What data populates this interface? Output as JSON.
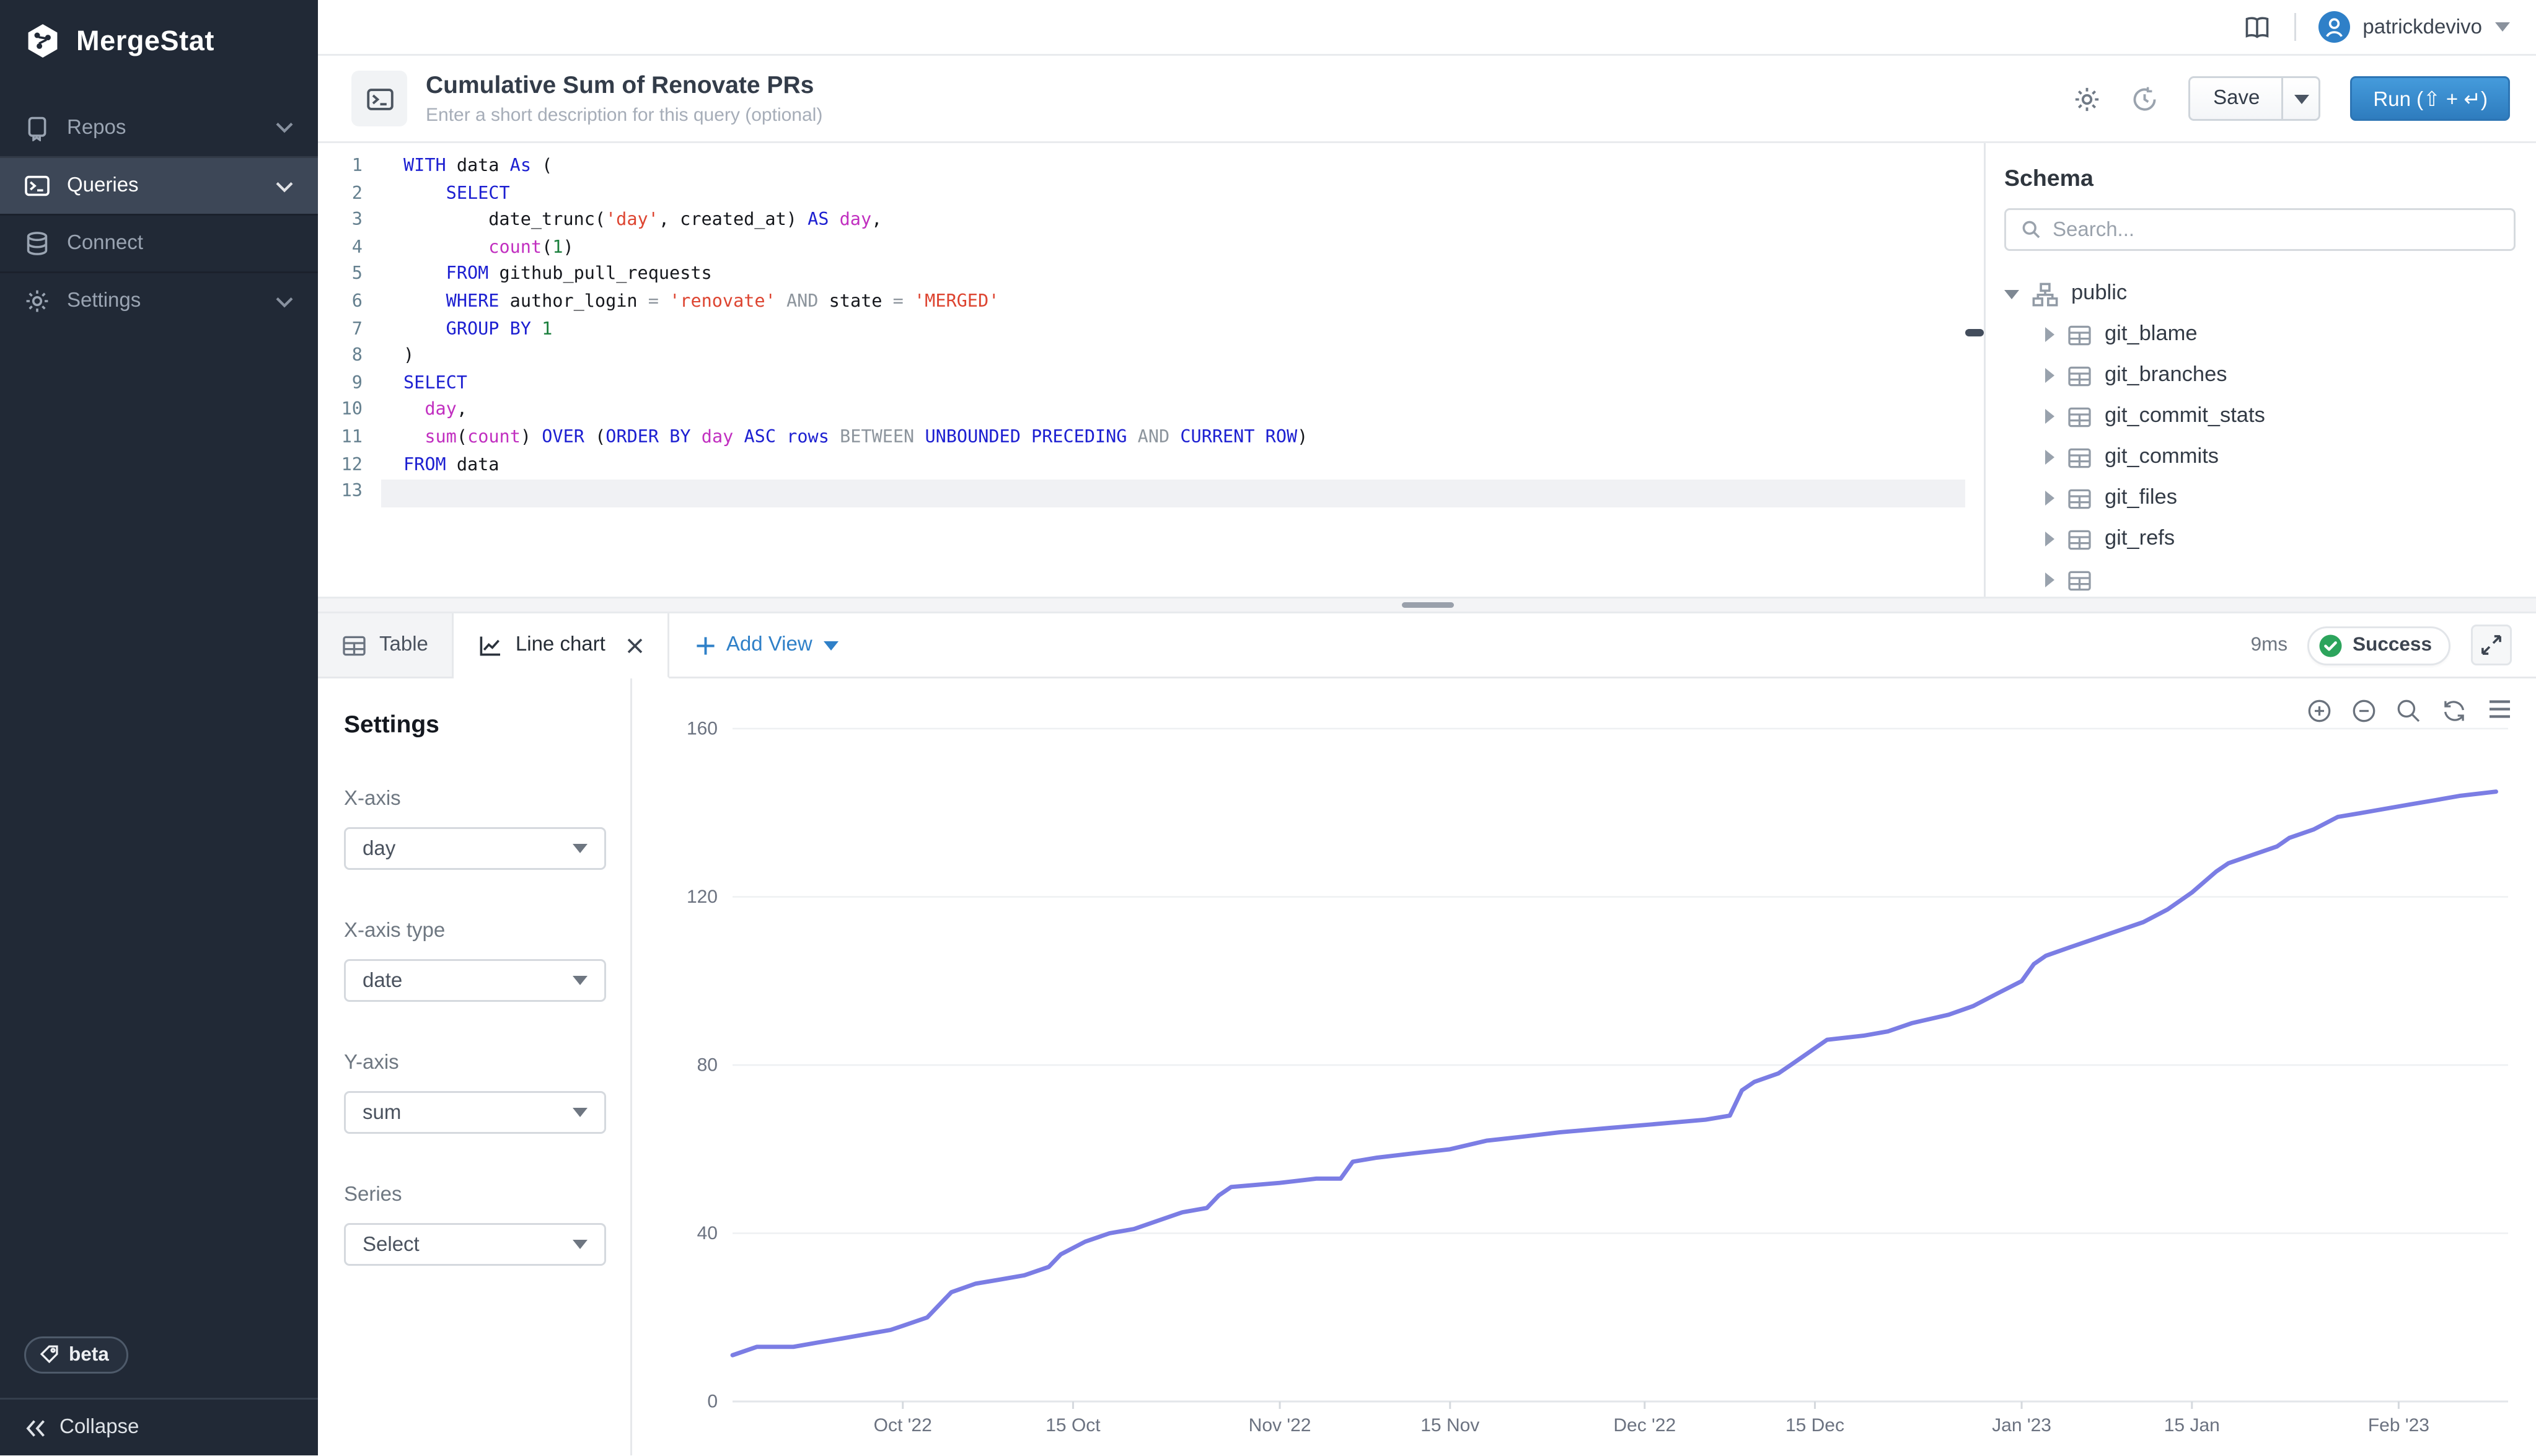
{
  "sidebar": {
    "logo_text": "MergeStat",
    "items": [
      {
        "label": "Repos",
        "selected": false,
        "has_chevron": true
      },
      {
        "label": "Queries",
        "selected": true,
        "has_chevron": true
      },
      {
        "label": "Connect",
        "selected": false,
        "has_chevron": false
      },
      {
        "label": "Settings",
        "selected": false,
        "has_chevron": true
      }
    ],
    "beta_label": "beta",
    "collapse_label": "Collapse"
  },
  "topbar": {
    "username": "patrickdevivo"
  },
  "query_header": {
    "title": "Cumulative Sum of Renovate PRs",
    "description_placeholder": "Enter a short description for this query (optional)",
    "save_label": "Save",
    "run_label": "Run (⇧ + ↵)"
  },
  "editor": {
    "lines": [
      {
        "num": "1",
        "tokens": [
          [
            "kw",
            "WITH"
          ],
          [
            "pl",
            " data "
          ],
          [
            "kw",
            "As"
          ],
          [
            "pl",
            " ("
          ]
        ]
      },
      {
        "num": "2",
        "tokens": [
          [
            "pl",
            "    "
          ],
          [
            "kw",
            "SELECT"
          ]
        ]
      },
      {
        "num": "3",
        "tokens": [
          [
            "pl",
            "        date_trunc("
          ],
          [
            "str",
            "'day'"
          ],
          [
            "pl",
            ", created_at) "
          ],
          [
            "kw",
            "AS"
          ],
          [
            "pl",
            " "
          ],
          [
            "fn",
            "day"
          ],
          [
            "pl",
            ","
          ]
        ]
      },
      {
        "num": "4",
        "tokens": [
          [
            "pl",
            "        "
          ],
          [
            "fn",
            "count"
          ],
          [
            "pl",
            "("
          ],
          [
            "num",
            "1"
          ],
          [
            "pl",
            ")"
          ]
        ]
      },
      {
        "num": "5",
        "tokens": [
          [
            "pl",
            "    "
          ],
          [
            "kw",
            "FROM"
          ],
          [
            "pl",
            " github_pull_requests"
          ]
        ]
      },
      {
        "num": "6",
        "tokens": [
          [
            "pl",
            "    "
          ],
          [
            "kw",
            "WHERE"
          ],
          [
            "pl",
            " author_login "
          ],
          [
            "op",
            "="
          ],
          [
            "pl",
            " "
          ],
          [
            "str",
            "'renovate'"
          ],
          [
            "pl",
            " "
          ],
          [
            "op",
            "AND"
          ],
          [
            "pl",
            " state "
          ],
          [
            "op",
            "="
          ],
          [
            "pl",
            " "
          ],
          [
            "str",
            "'MERGED'"
          ]
        ]
      },
      {
        "num": "7",
        "tokens": [
          [
            "pl",
            "    "
          ],
          [
            "kw",
            "GROUP BY"
          ],
          [
            "pl",
            " "
          ],
          [
            "num",
            "1"
          ]
        ]
      },
      {
        "num": "8",
        "tokens": [
          [
            "pl",
            ")"
          ]
        ]
      },
      {
        "num": "9",
        "tokens": [
          [
            "kw",
            "SELECT"
          ]
        ]
      },
      {
        "num": "10",
        "tokens": [
          [
            "pl",
            "  "
          ],
          [
            "fn",
            "day"
          ],
          [
            "pl",
            ","
          ]
        ]
      },
      {
        "num": "11",
        "tokens": [
          [
            "pl",
            "  "
          ],
          [
            "fn",
            "sum"
          ],
          [
            "pl",
            "("
          ],
          [
            "fn",
            "count"
          ],
          [
            "pl",
            ") "
          ],
          [
            "kw",
            "OVER"
          ],
          [
            "pl",
            " ("
          ],
          [
            "kw",
            "ORDER BY"
          ],
          [
            "pl",
            " "
          ],
          [
            "fn",
            "day"
          ],
          [
            "pl",
            " "
          ],
          [
            "kw",
            "ASC"
          ],
          [
            "pl",
            " "
          ],
          [
            "kw",
            "rows"
          ],
          [
            "pl",
            " "
          ],
          [
            "op",
            "BETWEEN"
          ],
          [
            "pl",
            " "
          ],
          [
            "kw",
            "UNBOUNDED PRECEDING"
          ],
          [
            "pl",
            " "
          ],
          [
            "op",
            "AND"
          ],
          [
            "pl",
            " "
          ],
          [
            "kw",
            "CURRENT ROW"
          ],
          [
            "pl",
            ")"
          ]
        ]
      },
      {
        "num": "12",
        "tokens": [
          [
            "kw",
            "FROM"
          ],
          [
            "pl",
            " data"
          ]
        ]
      },
      {
        "num": "13",
        "tokens": [],
        "active": true
      }
    ]
  },
  "schema": {
    "heading": "Schema",
    "search_placeholder": "Search...",
    "root_label": "public",
    "tables": [
      "git_blame",
      "git_branches",
      "git_commit_stats",
      "git_commits",
      "git_files",
      "git_refs",
      ""
    ]
  },
  "results": {
    "tabs": [
      {
        "label": "Table",
        "active": false
      },
      {
        "label": "Line chart",
        "active": true,
        "closable": true
      }
    ],
    "add_view_label": "Add View",
    "duration": "9ms",
    "status": "Success"
  },
  "settings_panel": {
    "heading": "Settings",
    "fields": [
      {
        "label": "X-axis",
        "value": "day"
      },
      {
        "label": "X-axis type",
        "value": "date"
      },
      {
        "label": "Y-axis",
        "value": "sum"
      },
      {
        "label": "Series",
        "value": "Select"
      }
    ]
  },
  "chart_data": {
    "type": "line",
    "title": "",
    "xlabel": "day",
    "ylabel": "sum",
    "line_color": "#7b7de4",
    "grid": true,
    "legend": false,
    "ylim": [
      0,
      160
    ],
    "yticks": [
      0,
      40,
      80,
      120,
      160
    ],
    "x_domain": [
      "2022-09-17",
      "2023-02-10"
    ],
    "xticks": [
      {
        "t": "2022-10-01",
        "label": "Oct '22"
      },
      {
        "t": "2022-10-15",
        "label": "15 Oct"
      },
      {
        "t": "2022-11-01",
        "label": "Nov '22"
      },
      {
        "t": "2022-11-15",
        "label": "15 Nov"
      },
      {
        "t": "2022-12-01",
        "label": "Dec '22"
      },
      {
        "t": "2022-12-15",
        "label": "15 Dec"
      },
      {
        "t": "2023-01-01",
        "label": "Jan '23"
      },
      {
        "t": "2023-01-15",
        "label": "15 Jan"
      },
      {
        "t": "2023-02-01",
        "label": "Feb '23"
      }
    ],
    "points": [
      [
        "2022-09-17",
        11
      ],
      [
        "2022-09-19",
        13
      ],
      [
        "2022-09-22",
        13
      ],
      [
        "2022-09-24",
        14
      ],
      [
        "2022-09-26",
        15
      ],
      [
        "2022-09-28",
        16
      ],
      [
        "2022-09-30",
        17
      ],
      [
        "2022-10-01",
        18
      ],
      [
        "2022-10-03",
        20
      ],
      [
        "2022-10-04",
        23
      ],
      [
        "2022-10-05",
        26
      ],
      [
        "2022-10-07",
        28
      ],
      [
        "2022-10-09",
        29
      ],
      [
        "2022-10-11",
        30
      ],
      [
        "2022-10-13",
        32
      ],
      [
        "2022-10-14",
        35
      ],
      [
        "2022-10-16",
        38
      ],
      [
        "2022-10-18",
        40
      ],
      [
        "2022-10-20",
        41
      ],
      [
        "2022-10-22",
        43
      ],
      [
        "2022-10-24",
        45
      ],
      [
        "2022-10-26",
        46
      ],
      [
        "2022-10-27",
        49
      ],
      [
        "2022-10-28",
        51
      ],
      [
        "2022-11-01",
        52
      ],
      [
        "2022-11-04",
        53
      ],
      [
        "2022-11-06",
        53
      ],
      [
        "2022-11-07",
        57
      ],
      [
        "2022-11-09",
        58
      ],
      [
        "2022-11-12",
        59
      ],
      [
        "2022-11-15",
        60
      ],
      [
        "2022-11-18",
        62
      ],
      [
        "2022-11-21",
        63
      ],
      [
        "2022-11-24",
        64
      ],
      [
        "2022-11-28",
        65
      ],
      [
        "2022-12-02",
        66
      ],
      [
        "2022-12-06",
        67
      ],
      [
        "2022-12-08",
        68
      ],
      [
        "2022-12-09",
        74
      ],
      [
        "2022-12-10",
        76
      ],
      [
        "2022-12-12",
        78
      ],
      [
        "2022-12-13",
        80
      ],
      [
        "2022-12-14",
        82
      ],
      [
        "2022-12-15",
        84
      ],
      [
        "2022-12-16",
        86
      ],
      [
        "2022-12-19",
        87
      ],
      [
        "2022-12-21",
        88
      ],
      [
        "2022-12-23",
        90
      ],
      [
        "2022-12-26",
        92
      ],
      [
        "2022-12-28",
        94
      ],
      [
        "2022-12-30",
        97
      ],
      [
        "2023-01-01",
        100
      ],
      [
        "2023-01-02",
        104
      ],
      [
        "2023-01-03",
        106
      ],
      [
        "2023-01-05",
        108
      ],
      [
        "2023-01-07",
        110
      ],
      [
        "2023-01-09",
        112
      ],
      [
        "2023-01-11",
        114
      ],
      [
        "2023-01-13",
        117
      ],
      [
        "2023-01-15",
        121
      ],
      [
        "2023-01-17",
        126
      ],
      [
        "2023-01-18",
        128
      ],
      [
        "2023-01-20",
        130
      ],
      [
        "2023-01-22",
        132
      ],
      [
        "2023-01-23",
        134
      ],
      [
        "2023-01-25",
        136
      ],
      [
        "2023-01-27",
        139
      ],
      [
        "2023-01-29",
        140
      ],
      [
        "2023-01-31",
        141
      ],
      [
        "2023-02-02",
        142
      ],
      [
        "2023-02-04",
        143
      ],
      [
        "2023-02-06",
        144
      ],
      [
        "2023-02-09",
        145
      ]
    ]
  }
}
